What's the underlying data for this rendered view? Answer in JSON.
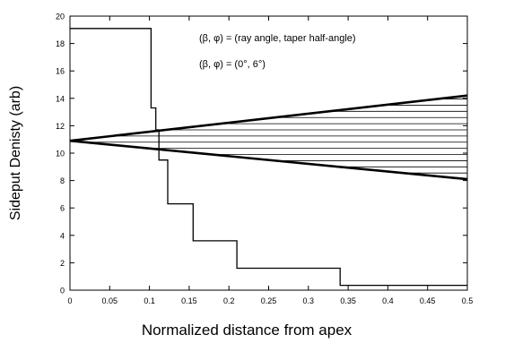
{
  "chart_data": {
    "type": "line",
    "title": "",
    "xlabel": "Normalized distance from apex",
    "ylabel": "Sideput Denisty (arb)",
    "xlim": [
      0,
      0.5
    ],
    "ylim": [
      0,
      20
    ],
    "x_ticks": [
      "0",
      "0.05",
      "0.1",
      "0.15",
      "0.2",
      "0.25",
      "0.3",
      "0.35",
      "0.4",
      "0.45",
      "0.5"
    ],
    "y_ticks": [
      "0",
      "2",
      "4",
      "6",
      "8",
      "10",
      "12",
      "14",
      "16",
      "18",
      "20"
    ],
    "grid": false,
    "annotations": [
      "(β, φ) = (ray angle, taper half-angle)",
      "(β, φ) = (0°, 6°)"
    ],
    "series": [
      {
        "style": "step",
        "x": [
          0,
          0.102,
          0.102,
          0.108,
          0.108,
          0.112,
          0.112,
          0.123,
          0.123,
          0.13,
          0.13,
          0.155,
          0.155,
          0.21,
          0.21,
          0.34,
          0.34,
          0.5
        ],
        "y": [
          19.1,
          19.1,
          13.3,
          13.3,
          11.7,
          11.7,
          9.5,
          9.5,
          6.3,
          6.3,
          6.3,
          6.3,
          3.6,
          3.6,
          1.6,
          1.6,
          0.35,
          0.35
        ]
      },
      {
        "style": "line-bold",
        "x": [
          0,
          0.5
        ],
        "y": [
          10.9,
          14.2
        ]
      },
      {
        "style": "line-bold",
        "x": [
          0,
          0.5
        ],
        "y": [
          10.9,
          8.1
        ]
      }
    ],
    "hatched_region": {
      "apex": [
        0.0,
        10.9
      ],
      "upper_end": [
        0.5,
        14.2
      ],
      "lower_end": [
        0.5,
        8.1
      ],
      "line_spacing": 0.45
    }
  }
}
